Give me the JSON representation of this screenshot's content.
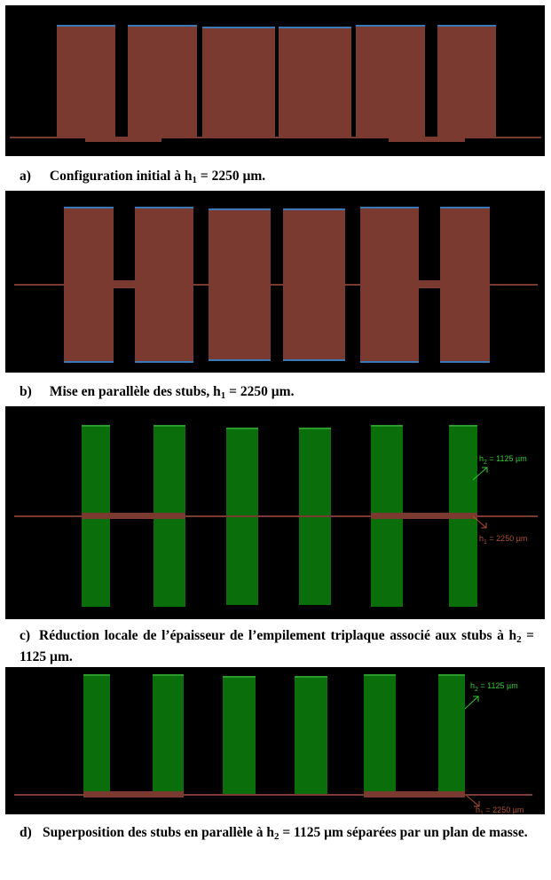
{
  "colors": {
    "background": "#000000",
    "stub_brown": "#7a3a30",
    "stub_edge_blue": "#3a7ab8",
    "stub_green": "#0a6e0a",
    "stub_green_edge": "#2a9a2a",
    "line_brown": "#7a3a30",
    "annotation_green": "#33cc33",
    "annotation_brown": "#b05030"
  },
  "captions": [
    {
      "label": "a)",
      "pre": "Configuration initial à h",
      "sub": "1",
      "post": " = 2250 µm."
    },
    {
      "label": "b)",
      "pre": "Mise en parallèle des stubs, h",
      "sub": "1",
      "post": " = 2250 µm."
    },
    {
      "label": "c)",
      "pre": "Réduction locale de l’épaisseur de l’empilement triplaque associé aux stubs à h",
      "sub": "2",
      "post": " = 1125 µm."
    },
    {
      "label": "d)",
      "pre": "Superposition des stubs en parallèle à h",
      "sub": "2",
      "post": " = 1125 µm séparées par un plan de masse."
    }
  ],
  "annotations": {
    "h2": {
      "pre": "h",
      "sub": "2",
      "post": " = 1125 µm"
    },
    "h1": {
      "pre": "h",
      "sub": "1",
      "post": " = 2250 µm"
    }
  }
}
